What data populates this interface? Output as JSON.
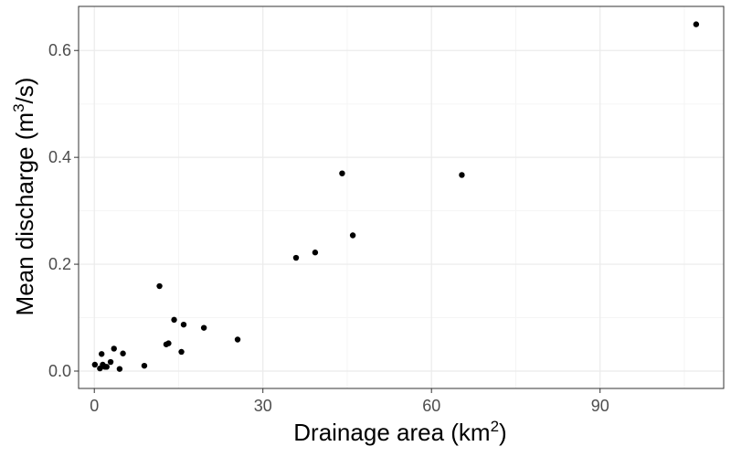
{
  "chart_data": {
    "type": "scatter",
    "xlabel": {
      "text": "Drainage area (km",
      "superscript": "2",
      "suffix": ")"
    },
    "ylabel": {
      "text": "Mean discharge (m",
      "superscript": "3",
      "suffix": "/s)"
    },
    "xlim": [
      -2.8,
      112
    ],
    "ylim": [
      -0.0325,
      0.6825
    ],
    "x_ticks": [
      0,
      30,
      60,
      90
    ],
    "x_tick_labels": [
      "0",
      "30",
      "60",
      "90"
    ],
    "x_minor_ticks": [
      15,
      45,
      75,
      105
    ],
    "y_ticks": [
      0.0,
      0.2,
      0.4,
      0.6
    ],
    "y_tick_labels": [
      "0.0",
      "0.2",
      "0.4",
      "0.6"
    ],
    "y_minor_ticks": [
      0.1,
      0.3,
      0.5
    ],
    "grid": true,
    "theme_colors": {
      "panel_border": "#333333",
      "grid_major": "#ebebeb",
      "grid_minor": "#f5f5f5",
      "point": "#000000"
    },
    "points": [
      {
        "x": 0.1,
        "y": 0.012
      },
      {
        "x": 1.0,
        "y": 0.005
      },
      {
        "x": 1.3,
        "y": 0.032
      },
      {
        "x": 1.5,
        "y": 0.012
      },
      {
        "x": 1.9,
        "y": 0.008
      },
      {
        "x": 2.2,
        "y": 0.008
      },
      {
        "x": 2.9,
        "y": 0.017
      },
      {
        "x": 3.5,
        "y": 0.042
      },
      {
        "x": 4.5,
        "y": 0.004
      },
      {
        "x": 5.1,
        "y": 0.033
      },
      {
        "x": 8.9,
        "y": 0.01
      },
      {
        "x": 11.6,
        "y": 0.159
      },
      {
        "x": 12.8,
        "y": 0.05
      },
      {
        "x": 13.2,
        "y": 0.052
      },
      {
        "x": 14.2,
        "y": 0.096
      },
      {
        "x": 15.5,
        "y": 0.036
      },
      {
        "x": 15.9,
        "y": 0.087
      },
      {
        "x": 19.5,
        "y": 0.081
      },
      {
        "x": 25.5,
        "y": 0.059
      },
      {
        "x": 35.9,
        "y": 0.212
      },
      {
        "x": 39.3,
        "y": 0.222
      },
      {
        "x": 44.1,
        "y": 0.37
      },
      {
        "x": 46.0,
        "y": 0.254
      },
      {
        "x": 65.4,
        "y": 0.367
      },
      {
        "x": 107.1,
        "y": 0.649
      }
    ]
  }
}
